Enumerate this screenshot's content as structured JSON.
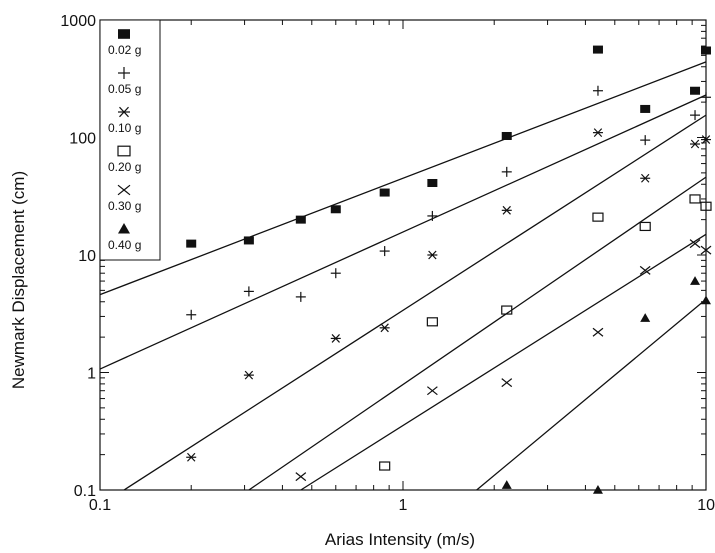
{
  "chart_data": {
    "type": "scatter",
    "xlabel": "Arias Intensity (m/s)",
    "ylabel": "Newmark Displacement (cm)",
    "x_scale": "log",
    "y_scale": "log",
    "xlim": [
      0.1,
      10
    ],
    "ylim": [
      0.1,
      1000
    ],
    "x_ticks": [
      "0.1",
      "1",
      "10"
    ],
    "y_ticks": [
      "0.1",
      "1",
      "10",
      "100",
      "1000"
    ],
    "grid": false,
    "legend_position": "top-left",
    "series": [
      {
        "name": "0.02 g",
        "marker": "filled-square",
        "points": [
          [
            0.2,
            12.5
          ],
          [
            0.31,
            13.3
          ],
          [
            0.46,
            20
          ],
          [
            0.6,
            24.5
          ],
          [
            0.87,
            34
          ],
          [
            1.25,
            41
          ],
          [
            2.2,
            103
          ],
          [
            4.4,
            560
          ],
          [
            6.3,
            175
          ],
          [
            9.2,
            250
          ],
          [
            10.0,
            550
          ]
        ],
        "fit_line": [
          [
            0.1,
            4.6
          ],
          [
            10.0,
            440
          ]
        ]
      },
      {
        "name": "0.05 g",
        "marker": "plus",
        "points": [
          [
            0.2,
            3.1
          ],
          [
            0.31,
            4.9
          ],
          [
            0.46,
            4.4
          ],
          [
            0.6,
            7.0
          ],
          [
            0.87,
            10.8
          ],
          [
            1.25,
            21.5
          ],
          [
            2.2,
            51
          ],
          [
            4.4,
            250
          ],
          [
            6.3,
            95
          ],
          [
            9.2,
            155
          ],
          [
            10.0,
            220
          ]
        ],
        "fit_line": [
          [
            0.1,
            1.07
          ],
          [
            10.0,
            230
          ]
        ]
      },
      {
        "name": "0.10 g",
        "marker": "asterisk",
        "points": [
          [
            0.2,
            0.19
          ],
          [
            0.31,
            0.95
          ],
          [
            0.6,
            1.95
          ],
          [
            0.87,
            2.4
          ],
          [
            1.25,
            10.0
          ],
          [
            2.2,
            24
          ],
          [
            4.4,
            110
          ],
          [
            6.3,
            45
          ],
          [
            9.2,
            88
          ],
          [
            10.0,
            96
          ]
        ],
        "fit_line": [
          [
            0.12,
            0.1
          ],
          [
            10.0,
            155
          ]
        ]
      },
      {
        "name": "0.20 g",
        "marker": "open-square",
        "points": [
          [
            0.87,
            0.16
          ],
          [
            1.25,
            2.7
          ],
          [
            2.2,
            3.4
          ],
          [
            4.4,
            21
          ],
          [
            6.3,
            17.5
          ],
          [
            9.2,
            30
          ],
          [
            10.0,
            26
          ]
        ],
        "fit_line": [
          [
            0.31,
            0.1
          ],
          [
            10.0,
            46
          ]
        ]
      },
      {
        "name": "0.30 g",
        "marker": "x",
        "points": [
          [
            0.46,
            0.13
          ],
          [
            1.25,
            0.7
          ],
          [
            2.2,
            0.82
          ],
          [
            4.4,
            2.2
          ],
          [
            6.3,
            7.4
          ],
          [
            9.2,
            12.5
          ],
          [
            10.0,
            11
          ]
        ],
        "fit_line": [
          [
            0.46,
            0.1
          ],
          [
            10.0,
            15
          ]
        ]
      },
      {
        "name": "0.40 g",
        "marker": "filled-triangle",
        "points": [
          [
            2.2,
            0.11
          ],
          [
            4.4,
            0.1
          ],
          [
            6.3,
            2.9
          ],
          [
            9.2,
            6.0
          ],
          [
            10.0,
            4.1
          ]
        ],
        "fit_line": [
          [
            1.75,
            0.1
          ],
          [
            10.0,
            4.2
          ]
        ]
      }
    ]
  }
}
